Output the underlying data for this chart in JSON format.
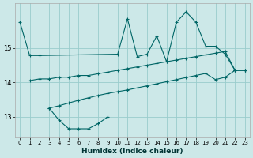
{
  "xlabel": "Humidex (Indice chaleur)",
  "bg_color": "#cce8e8",
  "grid_color": "#99cccc",
  "line_color": "#006666",
  "xlim": [
    -0.5,
    23.5
  ],
  "ylim": [
    12.4,
    16.3
  ],
  "yticks": [
    13,
    14,
    15
  ],
  "ytick_labels": [
    "13",
    "14",
    "15"
  ],
  "xticks": [
    0,
    1,
    2,
    3,
    4,
    5,
    6,
    7,
    8,
    9,
    10,
    11,
    12,
    13,
    14,
    15,
    16,
    17,
    18,
    19,
    20,
    21,
    22,
    23
  ],
  "series1_x": [
    0,
    1,
    2,
    10,
    11,
    12,
    13,
    14,
    15,
    16,
    17,
    18,
    19,
    20,
    21,
    22,
    23
  ],
  "series1_y": [
    15.75,
    14.78,
    14.78,
    14.82,
    15.85,
    14.75,
    14.82,
    15.35,
    14.6,
    15.75,
    16.05,
    15.75,
    15.05,
    15.05,
    14.82,
    14.35,
    14.35
  ],
  "series2_x": [
    1,
    2,
    3,
    4,
    5,
    6,
    7,
    8,
    9,
    10,
    11,
    12,
    13,
    14,
    15,
    16,
    17,
    18,
    19,
    20,
    21,
    22,
    23
  ],
  "series2_y": [
    14.05,
    14.1,
    14.1,
    14.15,
    14.15,
    14.2,
    14.2,
    14.25,
    14.3,
    14.35,
    14.4,
    14.45,
    14.5,
    14.55,
    14.6,
    14.65,
    14.7,
    14.75,
    14.8,
    14.85,
    14.9,
    14.35,
    14.35
  ],
  "series3_x": [
    3,
    4,
    5,
    6,
    7,
    8,
    9
  ],
  "series3_y": [
    13.25,
    12.9,
    12.65,
    12.65,
    12.65,
    12.8,
    13.0
  ],
  "series4_x": [
    3,
    4,
    5,
    6,
    7,
    8,
    9,
    10,
    11,
    12,
    13,
    14,
    15,
    16,
    17,
    18,
    19,
    20,
    21,
    22,
    23
  ],
  "series4_y": [
    13.25,
    13.32,
    13.4,
    13.48,
    13.55,
    13.62,
    13.68,
    13.73,
    13.78,
    13.84,
    13.9,
    13.96,
    14.02,
    14.08,
    14.14,
    14.2,
    14.26,
    14.08,
    14.15,
    14.35,
    14.35
  ]
}
